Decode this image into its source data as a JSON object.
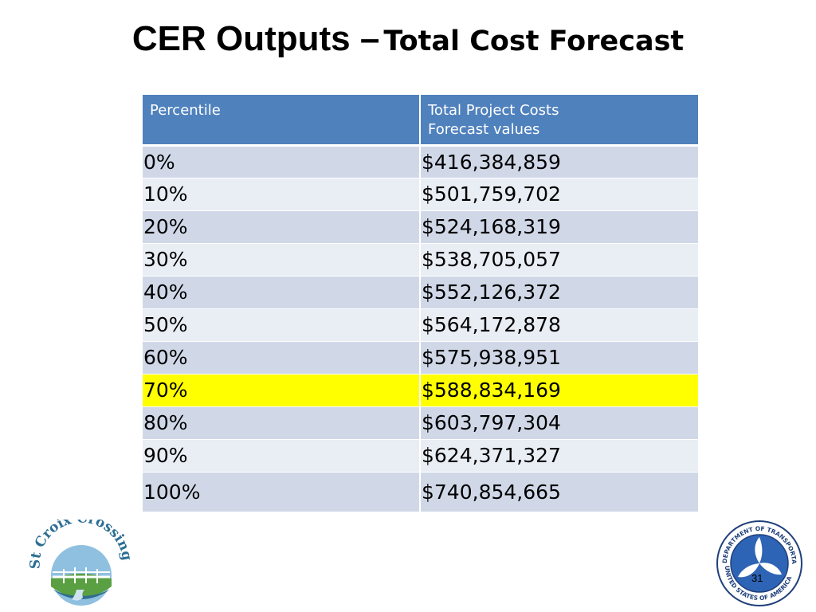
{
  "title": {
    "main": "CER Outputs –",
    "sub": "Total Cost Forecast"
  },
  "table": {
    "headers": {
      "percentile": "Percentile",
      "value_line1": "Total Project Costs",
      "value_line2": "Forecast values"
    },
    "rows": [
      {
        "percentile": "0%",
        "value": "$416,384,859"
      },
      {
        "percentile": "10%",
        "value": "$501,759,702"
      },
      {
        "percentile": "20%",
        "value": "$524,168,319"
      },
      {
        "percentile": "30%",
        "value": "$538,705,057"
      },
      {
        "percentile": "40%",
        "value": "$552,126,372"
      },
      {
        "percentile": "50%",
        "value": "$564,172,878"
      },
      {
        "percentile": "60%",
        "value": "$575,938,951"
      },
      {
        "percentile": "70%",
        "value": "$588,834,169"
      },
      {
        "percentile": "80%",
        "value": "$603,797,304"
      },
      {
        "percentile": "90%",
        "value": "$624,371,327"
      },
      {
        "percentile": "100%",
        "value": "$740,854,665"
      }
    ],
    "highlighted_row": "70%"
  },
  "colors": {
    "header_bg": "#4f81bd",
    "row_odd": "#d0d8e8",
    "row_even": "#e9edf4",
    "highlight": "#ffff00"
  },
  "logos": {
    "left": {
      "text": "St Croix Crossing",
      "icon": "st-croix-crossing-logo"
    },
    "right": {
      "text_top": "DEPARTMENT OF TRANSPORTATION",
      "text_bottom": "UNITED STATES OF AMERICA",
      "icon": "usdot-seal"
    }
  },
  "slide_number": "31"
}
